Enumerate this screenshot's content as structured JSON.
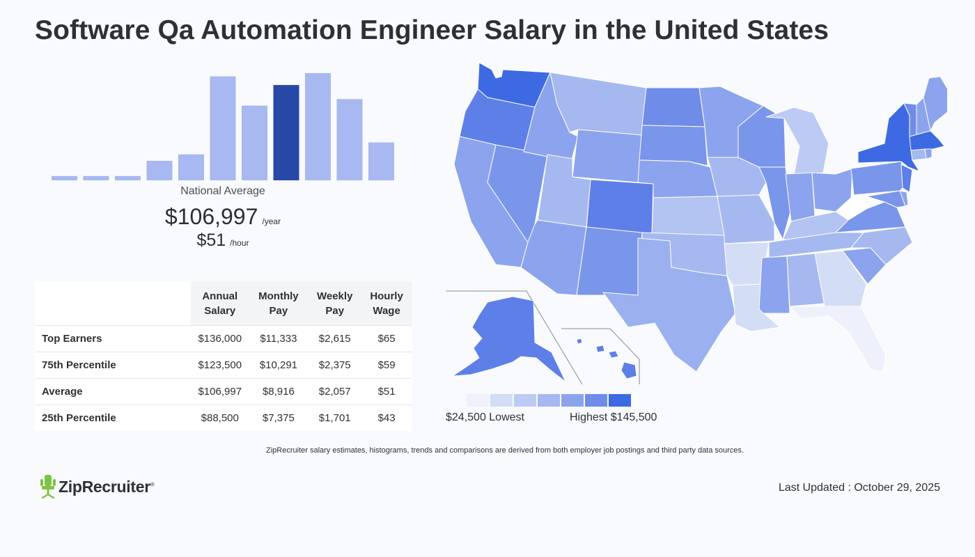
{
  "page_title": "Software Qa Automation Engineer Salary in the United States",
  "chart_data": [
    {
      "type": "bar",
      "values": [
        4,
        4,
        4,
        18,
        24,
        96,
        69,
        88,
        99,
        75,
        35
      ],
      "highlight_index": 7,
      "colors": {
        "bar": "#a8b8f0",
        "highlight": "#2848a8"
      }
    },
    {
      "type": "choropleth",
      "legend_low": "$24,500 Lowest",
      "legend_high": "Highest $145,500",
      "legend_colors": [
        "#eef1fb",
        "#d4ddf6",
        "#bdcaf3",
        "#a5b8f0",
        "#8ca4ed",
        "#6f8ce9",
        "#3d6ae3"
      ]
    }
  ],
  "summary": {
    "national_label": "National Average",
    "annual_value": "$106,997",
    "annual_unit": "/year",
    "hourly_value": "$51",
    "hourly_unit": "/hour"
  },
  "table": {
    "headers": [
      [
        "Annual",
        "Salary"
      ],
      [
        "Monthly",
        "Pay"
      ],
      [
        "Weekly",
        "Pay"
      ],
      [
        "Hourly",
        "Wage"
      ]
    ],
    "rows": [
      {
        "label": "Top Earners",
        "cells": [
          "$136,000",
          "$11,333",
          "$2,615",
          "$65"
        ]
      },
      {
        "label": "75th Percentile",
        "cells": [
          "$123,500",
          "$10,291",
          "$2,375",
          "$59"
        ]
      },
      {
        "label": "Average",
        "cells": [
          "$106,997",
          "$8,916",
          "$2,057",
          "$51"
        ]
      },
      {
        "label": "25th Percentile",
        "cells": [
          "$88,500",
          "$7,375",
          "$1,701",
          "$43"
        ]
      }
    ]
  },
  "disclaimer": "ZipRecruiter salary estimates, histograms, trends and comparisons are derived from both employer job postings and third party data sources.",
  "brand": {
    "name": "ZipRecruiter",
    "mark": "®",
    "icon": "chair-icon",
    "color": "#7ec242"
  },
  "last_updated": "Last Updated : October 29, 2025"
}
